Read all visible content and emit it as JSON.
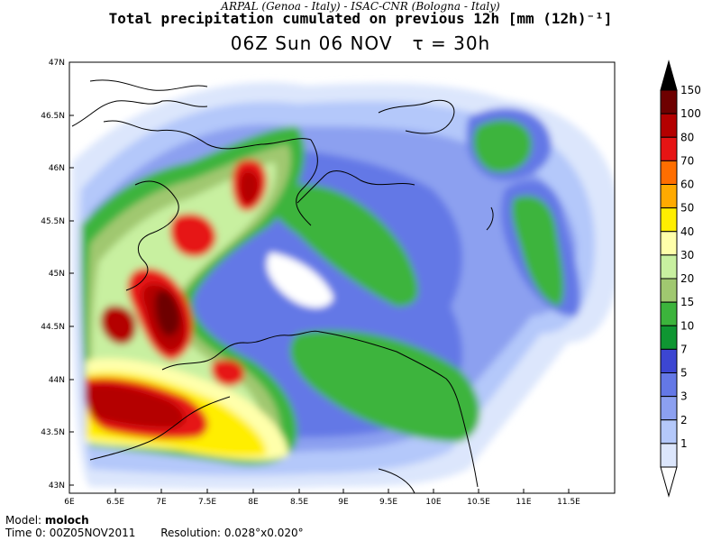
{
  "header": {
    "institutions": "ARPAL (Genoa - Italy)  -  ISAC-CNR (Bologna - Italy)",
    "title": "Total precipitation cumulated on previous 12h [mm (12h)⁻¹]",
    "valid_time": "06Z Sun 06 NOV",
    "tau": "τ = 30h"
  },
  "footer": {
    "model_label": "Model:",
    "model_name": "moloch",
    "time0_label": "Time 0:",
    "time0_value": "00Z05NOV2011",
    "resolution_label": "Resolution:",
    "resolution_value": "0.028°x0.020°"
  },
  "map": {
    "lon_ticks": [
      "6E",
      "6.5E",
      "7E",
      "7.5E",
      "8E",
      "8.5E",
      "9E",
      "9.5E",
      "10E",
      "10.5E",
      "11E",
      "11.5E"
    ],
    "lat_ticks": [
      "47N",
      "46.5N",
      "46N",
      "45.5N",
      "45N",
      "44.5N",
      "44N",
      "43.5N",
      "43N"
    ]
  },
  "colorbar": {
    "labels": [
      "150",
      "100",
      "80",
      "70",
      "60",
      "50",
      "40",
      "30",
      "20",
      "15",
      "10",
      "7",
      "5",
      "3",
      "2",
      "1"
    ],
    "colors": [
      "#000000",
      "#6e0000",
      "#b40000",
      "#e61414",
      "#ff6e00",
      "#ffaa00",
      "#ffee00",
      "#ffffaa",
      "#c8f0a0",
      "#a0c870",
      "#3cb43c",
      "#0f9632",
      "#3c46d2",
      "#6478e6",
      "#8ca0f0",
      "#b4c8fa",
      "#dce6fc",
      "#ffffff"
    ]
  }
}
